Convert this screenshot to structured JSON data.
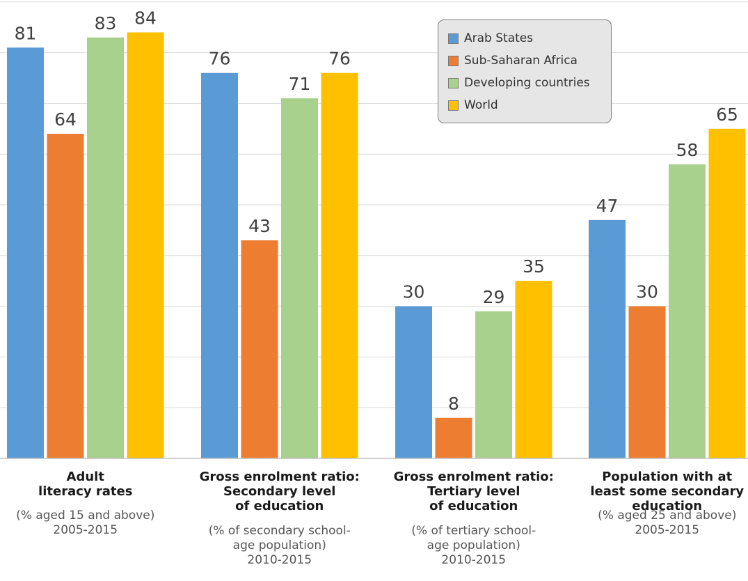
{
  "chart_data": {
    "type": "bar",
    "categories": [
      {
        "title_lines": [
          "Adult",
          "literacy rates"
        ],
        "sub_lines": [
          "(% aged 15 and above)",
          "2005-2015"
        ]
      },
      {
        "title_lines": [
          "Gross enrolment ratio:",
          "Secondary level",
          "of education"
        ],
        "sub_lines": [
          "(% of secondary school-",
          "age population)",
          "2010-2015"
        ]
      },
      {
        "title_lines": [
          "Gross enrolment ratio:",
          "Tertiary level",
          "of education"
        ],
        "sub_lines": [
          "(% of tertiary school-",
          "age population)",
          "2010-2015"
        ]
      },
      {
        "title_lines": [
          "Population with at",
          "least some secondary",
          "education"
        ],
        "sub_lines": [
          "(% aged 25 and above)",
          "2005-2015"
        ]
      }
    ],
    "series": [
      {
        "name": "Arab States",
        "color": "#5b9bd5",
        "values": [
          81,
          76,
          30,
          47
        ]
      },
      {
        "name": "Sub-Saharan Africa",
        "color": "#ed7d31",
        "values": [
          64,
          43,
          8,
          30
        ]
      },
      {
        "name": "Developing countries",
        "color": "#a9d18e",
        "values": [
          83,
          71,
          29,
          58
        ]
      },
      {
        "name": "World",
        "color": "#ffc000",
        "values": [
          84,
          76,
          35,
          65
        ]
      }
    ],
    "ylim": [
      0,
      90
    ],
    "grid": true,
    "legend_position": "top-right"
  }
}
